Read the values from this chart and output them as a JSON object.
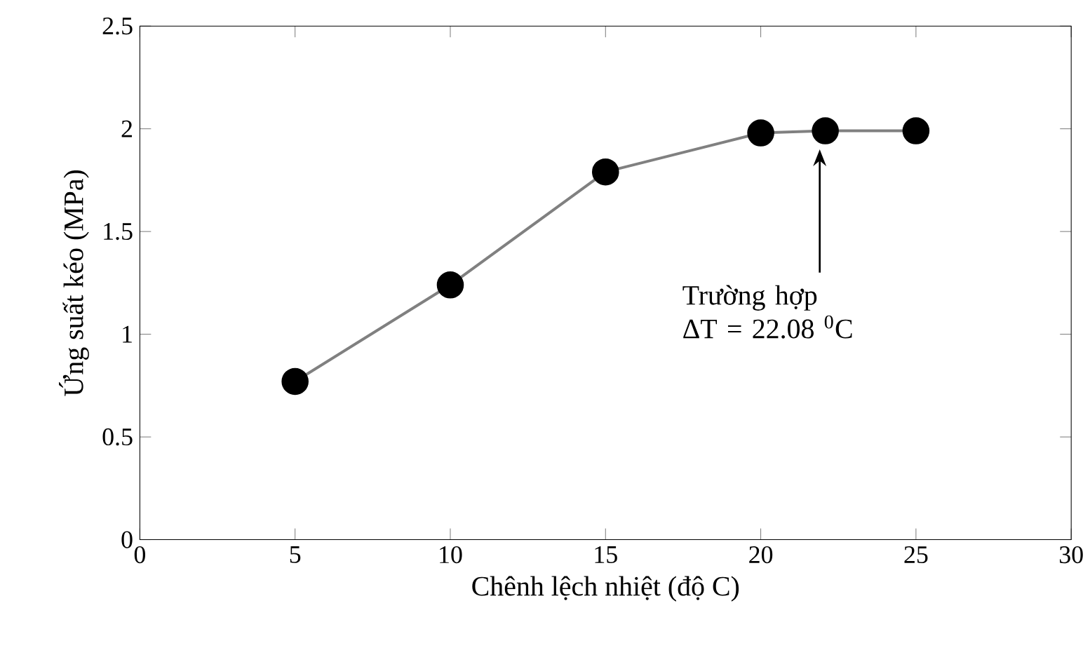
{
  "chart_data": {
    "type": "line",
    "xlabel": "Chênh lệch nhiệt (độ C)",
    "ylabel": "Ứng suất kéo (MPa)",
    "x": [
      5,
      10,
      15,
      20,
      22.08,
      25
    ],
    "series": [
      {
        "color": "#808080",
        "values": [
          0.77,
          1.24,
          1.79,
          1.98,
          1.99,
          1.99
        ]
      }
    ],
    "marker": "circle",
    "xlim": [
      0,
      30
    ],
    "xticks": [
      0,
      5,
      10,
      15,
      20,
      25,
      30
    ],
    "ylim": [
      0,
      2.5
    ],
    "yticks": [
      0,
      0.5,
      1,
      1.5,
      2,
      2.5
    ],
    "grid": false,
    "annotations": [
      "Trường hợp ΔT = 22.08 $^{0}$C"
    ]
  }
}
